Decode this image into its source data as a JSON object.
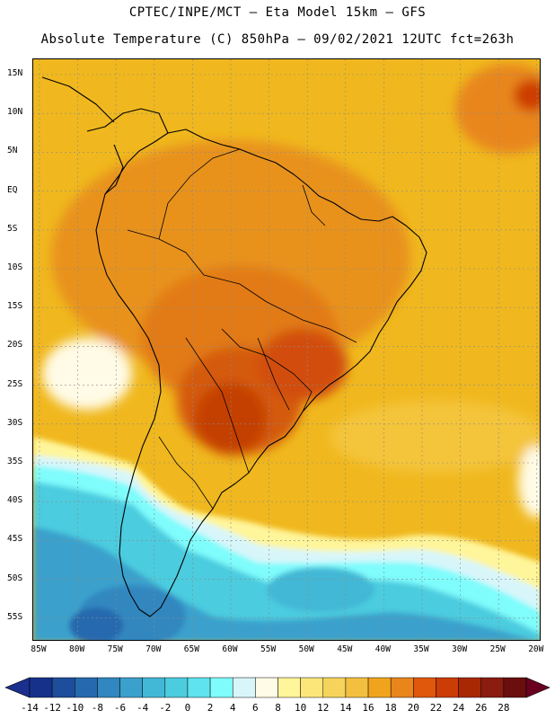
{
  "header": {
    "line1": "CPTEC/INPE/MCT –  Eta Model 15km – GFS",
    "line2": "Absolute Temperature (C) 850hPa – 09/02/2021 12UTC fct=263h"
  },
  "map": {
    "lat_ticks": [
      "15N",
      "10N",
      "5N",
      "EQ",
      "5S",
      "10S",
      "15S",
      "20S",
      "25S",
      "30S",
      "35S",
      "40S",
      "45S",
      "50S",
      "55S"
    ],
    "lon_ticks": [
      "85W",
      "80W",
      "75W",
      "70W",
      "65W",
      "60W",
      "55W",
      "50W",
      "45W",
      "40W",
      "35W",
      "30W",
      "25W",
      "20W"
    ],
    "ocean_color": "#f0b81e",
    "land_hot_color": "#e67e10",
    "core_color": "#c84a08",
    "cold_color": "#36d6e8"
  },
  "colorbar": {
    "labels": [
      "-14",
      "-12",
      "-10",
      "-8",
      "-6",
      "-4",
      "-2",
      "0",
      "2",
      "4",
      "6",
      "8",
      "10",
      "12",
      "14",
      "16",
      "18",
      "20",
      "22",
      "24",
      "26",
      "28"
    ],
    "colors": [
      "#15318a",
      "#1e4d9c",
      "#2769ae",
      "#3187bf",
      "#3ba1cc",
      "#43b8d6",
      "#4cccdf",
      "#5ee3ef",
      "#7ffcfc",
      "#d8f6fa",
      "#fffbe6",
      "#fff59a",
      "#fce67a",
      "#f6d45c",
      "#f2c03e",
      "#f0a41e",
      "#e8861c",
      "#e0580c",
      "#cc3c06",
      "#a82804",
      "#8a1c10",
      "#6a0e0e"
    ],
    "left_arrow_color": "#1b2f8e",
    "right_arrow_color": "#6a0020"
  }
}
